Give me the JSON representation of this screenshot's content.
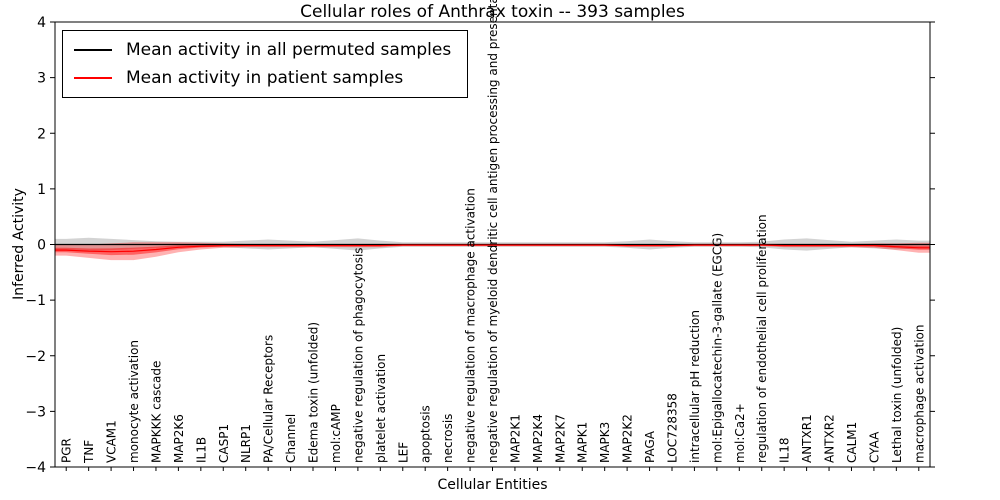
{
  "title": "Cellular roles of Anthrax toxin -- 393 samples",
  "axes": {
    "xlabel": "Cellular Entities",
    "ylabel": "Inferred Activity",
    "yticks": [
      {
        "v": 4,
        "label": "4"
      },
      {
        "v": 3,
        "label": "3"
      },
      {
        "v": 2,
        "label": "2"
      },
      {
        "v": 1,
        "label": "1"
      },
      {
        "v": 0,
        "label": "0"
      },
      {
        "v": -1,
        "label": "−1"
      },
      {
        "v": -2,
        "label": "−2"
      },
      {
        "v": -3,
        "label": "−3"
      },
      {
        "v": -4,
        "label": "−4"
      }
    ]
  },
  "legend": {
    "items": [
      {
        "label": "Mean activity in all permuted samples",
        "color": "#000000"
      },
      {
        "label": "Mean activity in patient samples",
        "color": "#ff0000"
      }
    ]
  },
  "chart_data": {
    "type": "violin",
    "title": "Cellular roles of Anthrax toxin -- 393 samples",
    "xlabel": "Cellular Entities",
    "ylabel": "Inferred Activity",
    "ylim": [
      -4,
      4
    ],
    "categories": [
      "PGR",
      "TNF",
      "VCAM1",
      "monocyte activation",
      "MAPKKK cascade",
      "MAP2K6",
      "IL1B",
      "CASP1",
      "NLRP1",
      "PA/Cellular Receptors",
      "Channel",
      "Edema toxin (unfolded)",
      "mol:cAMP",
      "negative regulation of phagocytosis",
      "platelet activation",
      "LEF",
      "apoptosis",
      "necrosis",
      "negative regulation of macrophage activation",
      "negative regulation of myeloid dendritic cell antigen processing and presentation",
      "MAP2K1",
      "MAP2K4",
      "MAP2K7",
      "MAPK1",
      "MAPK3",
      "MAP2K2",
      "PAGA",
      "LOC728358",
      "intracellular pH reduction",
      "mol:Epigallocatechin-3-gallate (EGCG)",
      "mol:Ca2+",
      "regulation of endothelial cell proliferation",
      "IL18",
      "ANTXR1",
      "ANTXR2",
      "CALM1",
      "CYAA",
      "Lethal toxin (unfolded)",
      "macrophage activation"
    ],
    "series": [
      {
        "name": "permuted",
        "fill": "#808080",
        "fill_alpha": 0.35,
        "line_color": "#000000",
        "mean": 0,
        "half_widths": [
          0.1,
          0.12,
          0.1,
          0.08,
          0.06,
          0.05,
          0.05,
          0.05,
          0.07,
          0.09,
          0.07,
          0.05,
          0.08,
          0.11,
          0.07,
          0.04,
          0.04,
          0.04,
          0.04,
          0.04,
          0.04,
          0.04,
          0.04,
          0.04,
          0.04,
          0.06,
          0.09,
          0.06,
          0.04,
          0.04,
          0.04,
          0.05,
          0.09,
          0.11,
          0.08,
          0.05,
          0.07,
          0.09,
          0.07
        ]
      },
      {
        "name": "patient",
        "fill": "#ff0000",
        "fill_alpha": 0.3,
        "line_color": "#ff0000",
        "core_fraction": 0.4,
        "core_alpha": 0.45,
        "mean": [
          -0.1,
          -0.12,
          -0.13,
          -0.12,
          -0.09,
          -0.05,
          -0.03,
          -0.02,
          -0.02,
          -0.02,
          -0.02,
          -0.02,
          -0.02,
          -0.02,
          -0.02,
          -0.01,
          -0.01,
          -0.01,
          -0.01,
          -0.01,
          -0.01,
          -0.01,
          -0.01,
          -0.01,
          -0.01,
          -0.02,
          -0.02,
          -0.02,
          -0.01,
          -0.01,
          -0.01,
          -0.01,
          -0.02,
          -0.02,
          -0.02,
          -0.02,
          -0.02,
          -0.04,
          -0.06
        ],
        "half_widths": [
          0.1,
          0.12,
          0.15,
          0.16,
          0.13,
          0.09,
          0.06,
          0.04,
          0.03,
          0.03,
          0.03,
          0.03,
          0.03,
          0.03,
          0.03,
          0.02,
          0.02,
          0.02,
          0.02,
          0.02,
          0.02,
          0.02,
          0.02,
          0.02,
          0.02,
          0.02,
          0.02,
          0.02,
          0.02,
          0.02,
          0.02,
          0.02,
          0.03,
          0.03,
          0.03,
          0.03,
          0.04,
          0.06,
          0.09
        ]
      }
    ],
    "n_samples": 393
  }
}
